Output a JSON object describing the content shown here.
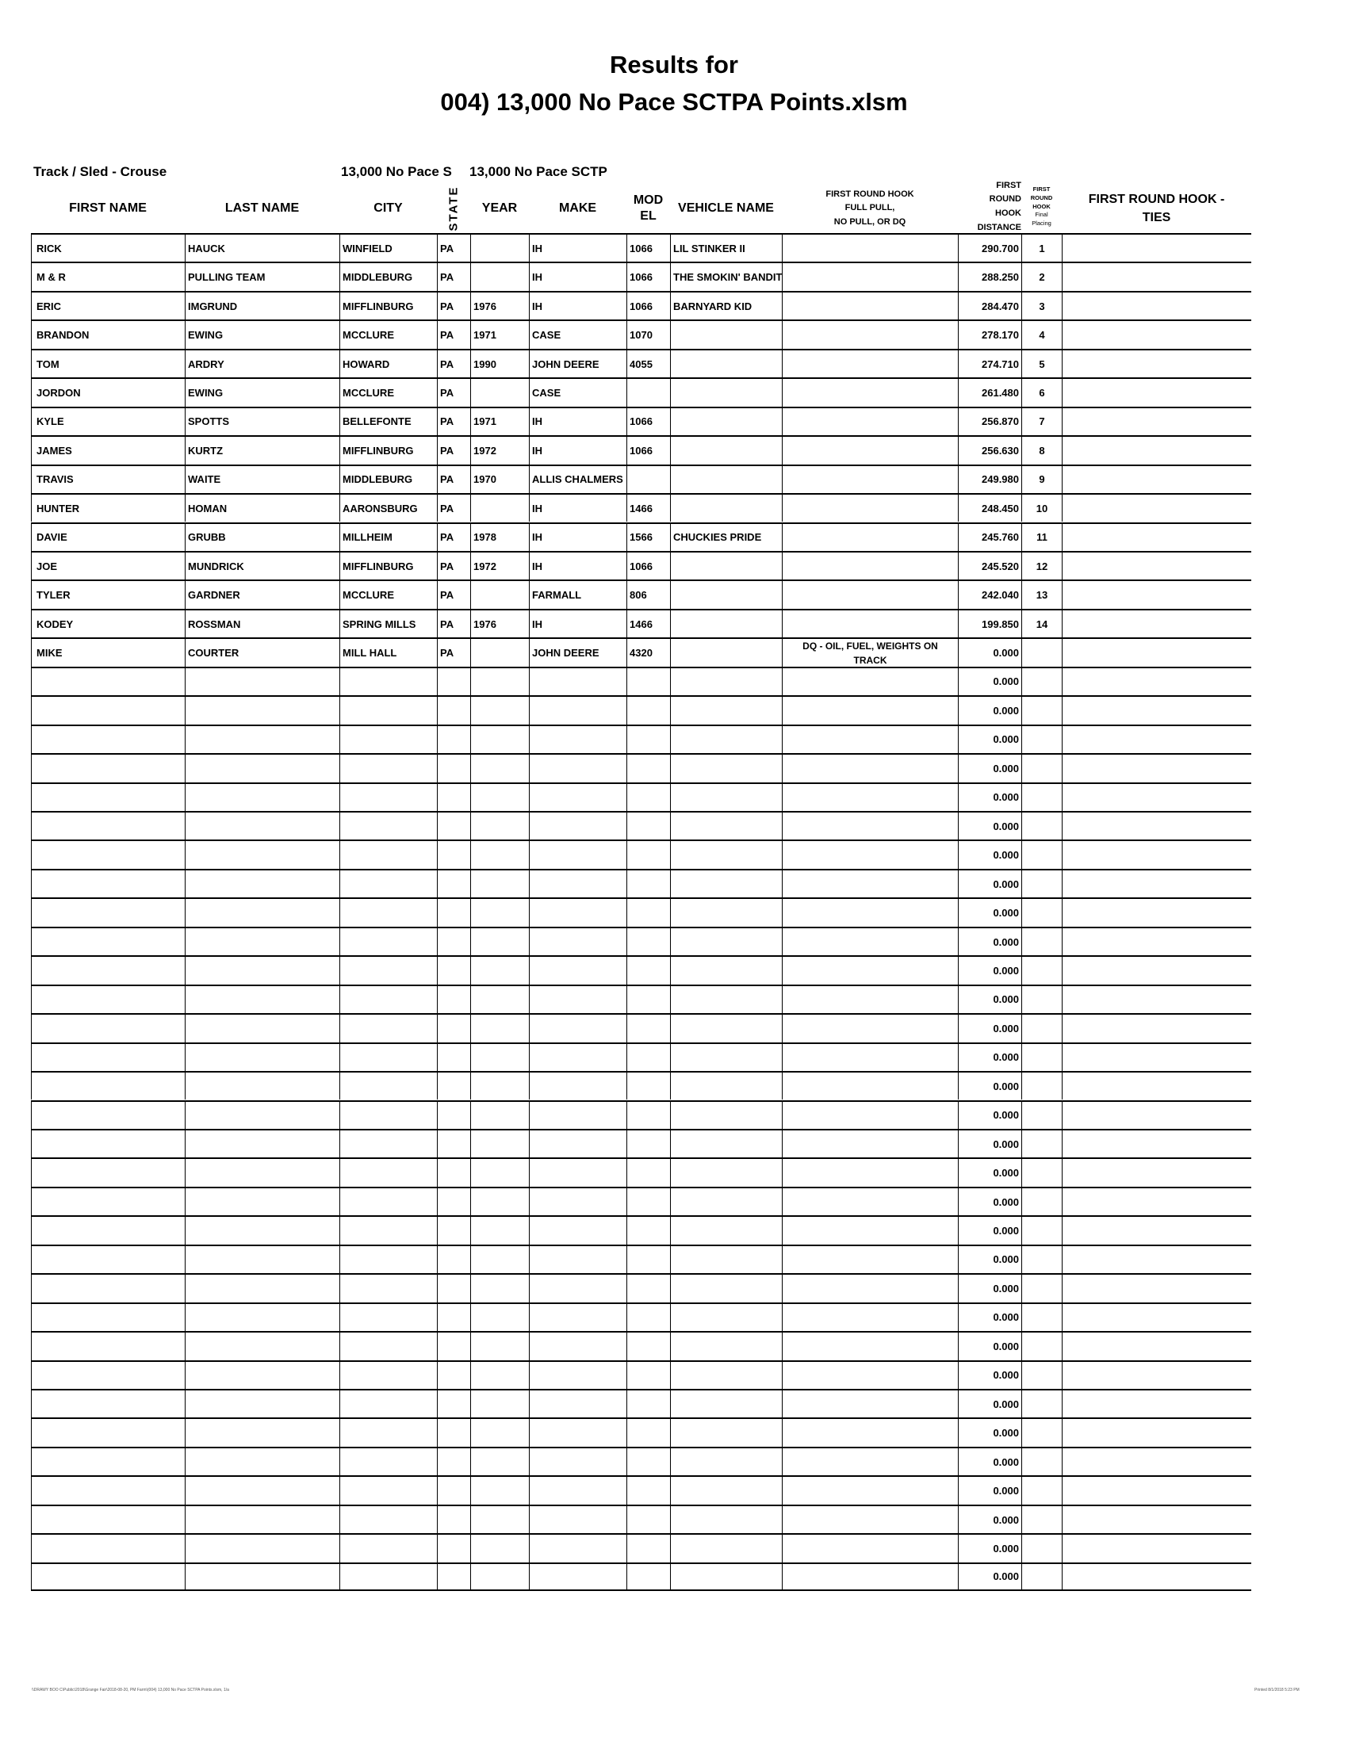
{
  "title_line1": "Results for",
  "title_line2": "004) 13,000 No Pace SCTPA Points.xlsm",
  "meta": {
    "track_sled": "Track / Sled - Crouse",
    "class_a": "13,000 No Pace S",
    "class_b": "13,000 No Pace SCTP"
  },
  "headers": {
    "first_name": "FIRST NAME",
    "last_name": "LAST NAME",
    "city": "CITY",
    "state": "STATE",
    "year": "YEAR",
    "make": "MAKE",
    "model_l1": "MOD",
    "model_l2": "EL",
    "vehicle_name": "VEHICLE NAME",
    "hook_l1": "FIRST ROUND HOOK",
    "hook_l2": "FULL PULL,",
    "hook_l3": "NO PULL, OR DQ",
    "dist_l1": "FIRST",
    "dist_l2": "ROUND",
    "dist_l3": "HOOK",
    "dist_l4": "DISTANCE",
    "place_l1": "FIRST",
    "place_l2": "ROUND",
    "place_l3": "HOOK",
    "place_l4": "Final",
    "place_l5": "Placing",
    "ties_l1": "FIRST ROUND HOOK -",
    "ties_l2": "TIES"
  },
  "rows": [
    {
      "first": "RICK",
      "last": "HAUCK",
      "city": "WINFIELD",
      "state": "PA",
      "year": "",
      "make": "IH",
      "model": "1066",
      "vehicle": "LIL STINKER II",
      "hook": "",
      "distance": "290.700",
      "placing": "1",
      "ties": ""
    },
    {
      "first": "M & R",
      "last": "PULLING TEAM",
      "city": "MIDDLEBURG",
      "state": "PA",
      "year": "",
      "make": "IH",
      "model": "1066",
      "vehicle": "THE SMOKIN' BANDIT",
      "hook": "",
      "distance": "288.250",
      "placing": "2",
      "ties": ""
    },
    {
      "first": "ERIC",
      "last": "IMGRUND",
      "city": "MIFFLINBURG",
      "state": "PA",
      "year": "1976",
      "make": "IH",
      "model": "1066",
      "vehicle": "BARNYARD KID",
      "hook": "",
      "distance": "284.470",
      "placing": "3",
      "ties": ""
    },
    {
      "first": "BRANDON",
      "last": "EWING",
      "city": "MCCLURE",
      "state": "PA",
      "year": "1971",
      "make": "CASE",
      "model": "1070",
      "vehicle": "",
      "hook": "",
      "distance": "278.170",
      "placing": "4",
      "ties": ""
    },
    {
      "first": "TOM",
      "last": "ARDRY",
      "city": "HOWARD",
      "state": "PA",
      "year": "1990",
      "make": "JOHN DEERE",
      "model": "4055",
      "vehicle": "",
      "hook": "",
      "distance": "274.710",
      "placing": "5",
      "ties": ""
    },
    {
      "first": "JORDON",
      "last": "EWING",
      "city": "MCCLURE",
      "state": "PA",
      "year": "",
      "make": "CASE",
      "model": "",
      "vehicle": "",
      "hook": "",
      "distance": "261.480",
      "placing": "6",
      "ties": ""
    },
    {
      "first": "KYLE",
      "last": "SPOTTS",
      "city": "BELLEFONTE",
      "state": "PA",
      "year": "1971",
      "make": "IH",
      "model": "1066",
      "vehicle": "",
      "hook": "",
      "distance": "256.870",
      "placing": "7",
      "ties": ""
    },
    {
      "first": "JAMES",
      "last": "KURTZ",
      "city": "MIFFLINBURG",
      "state": "PA",
      "year": "1972",
      "make": "IH",
      "model": "1066",
      "vehicle": "",
      "hook": "",
      "distance": "256.630",
      "placing": "8",
      "ties": ""
    },
    {
      "first": "TRAVIS",
      "last": "WAITE",
      "city": "MIDDLEBURG",
      "state": "PA",
      "year": "1970",
      "make": "ALLIS CHALMERS",
      "model": "",
      "vehicle": "",
      "hook": "",
      "distance": "249.980",
      "placing": "9",
      "ties": ""
    },
    {
      "first": "HUNTER",
      "last": "HOMAN",
      "city": "AARONSBURG",
      "state": "PA",
      "year": "",
      "make": "IH",
      "model": "1466",
      "vehicle": "",
      "hook": "",
      "distance": "248.450",
      "placing": "10",
      "ties": ""
    },
    {
      "first": "DAVIE",
      "last": "GRUBB",
      "city": "MILLHEIM",
      "state": "PA",
      "year": "1978",
      "make": "IH",
      "model": "1566",
      "vehicle": "CHUCKIES PRIDE",
      "hook": "",
      "distance": "245.760",
      "placing": "11",
      "ties": ""
    },
    {
      "first": "JOE",
      "last": "MUNDRICK",
      "city": "MIFFLINBURG",
      "state": "PA",
      "year": "1972",
      "make": "IH",
      "model": "1066",
      "vehicle": "",
      "hook": "",
      "distance": "245.520",
      "placing": "12",
      "ties": ""
    },
    {
      "first": "TYLER",
      "last": "GARDNER",
      "city": "MCCLURE",
      "state": "PA",
      "year": "",
      "make": "FARMALL",
      "model": "806",
      "vehicle": "",
      "hook": "",
      "distance": "242.040",
      "placing": "13",
      "ties": ""
    },
    {
      "first": "KODEY",
      "last": "ROSSMAN",
      "city": "SPRING MILLS",
      "state": "PA",
      "year": "1976",
      "make": "IH",
      "model": "1466",
      "vehicle": "",
      "hook": "",
      "distance": "199.850",
      "placing": "14",
      "ties": ""
    },
    {
      "first": "MIKE",
      "last": "COURTER",
      "city": "MILL HALL",
      "state": "PA",
      "year": "",
      "make": "JOHN DEERE",
      "model": "4320",
      "vehicle": "",
      "hook": "DQ - OIL, FUEL, WEIGHTS ON TRACK",
      "distance": "0.000",
      "placing": "",
      "ties": ""
    }
  ],
  "empty_row_distance": "0.000",
  "empty_row_count": 32,
  "footer": {
    "path": "\\\\DRAWY BOO C\\Public\\2018\\Grange Fair\\2018-08-20, PM Farm\\(004) 13,000 No Pace SCTPA Points.xlsm, 1/a",
    "printed": "Printed 8/1/2018 5:23 PM"
  }
}
